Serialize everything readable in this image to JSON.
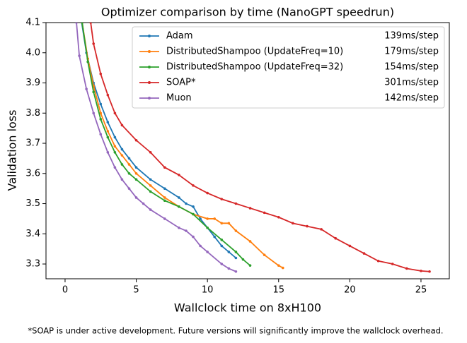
{
  "chart_data": {
    "type": "line",
    "title": "Optimizer comparison by time (NanoGPT speedrun)",
    "xlabel": "Wallclock time on 8xH100",
    "ylabel": "Validation loss",
    "footnote": "*SOAP is under active development. Future versions will significantly improve the wallclock overhead.",
    "xlim": [
      -1.34,
      26.99
    ],
    "xticks": [
      0,
      5,
      10,
      15,
      20,
      25
    ],
    "ylim": [
      3.251,
      4.1
    ],
    "yticks": [
      3.3,
      3.4,
      3.5,
      3.6,
      3.7,
      3.8,
      3.9,
      {
        "value": 4,
        "label": "4.0"
      },
      4.1
    ],
    "legend": "upper right",
    "series": [
      {
        "name": "Adam",
        "note": "139ms/step",
        "color": "#1f77b4",
        "x": [
          1.1,
          1.5,
          2,
          2.5,
          3,
          3.5,
          4,
          4.5,
          5,
          6,
          7,
          8,
          8.5,
          9,
          9.5,
          10,
          10.5,
          11,
          11.5,
          12
        ],
        "values": [
          4.12,
          4.0,
          3.9,
          3.83,
          3.77,
          3.72,
          3.68,
          3.65,
          3.62,
          3.58,
          3.55,
          3.52,
          3.5,
          3.49,
          3.45,
          3.42,
          3.39,
          3.36,
          3.34,
          3.32
        ]
      },
      {
        "name": "DistributedShampoo (UpdateFreq=10)",
        "note": "179ms/step",
        "color": "#ff7f0e",
        "x": [
          1.2,
          1.6,
          2,
          2.5,
          3,
          3.5,
          4,
          4.5,
          5,
          6,
          7,
          8,
          9,
          10,
          10.5,
          11,
          11.5,
          12,
          13,
          14,
          15,
          15.3
        ],
        "values": [
          4.1,
          3.98,
          3.89,
          3.8,
          3.74,
          3.69,
          3.66,
          3.63,
          3.6,
          3.56,
          3.52,
          3.49,
          3.465,
          3.45,
          3.45,
          3.435,
          3.435,
          3.41,
          3.375,
          3.33,
          3.295,
          3.287
        ]
      },
      {
        "name": "DistributedShampoo (UpdateFreq=32)",
        "note": "154ms/step",
        "color": "#2ca02c",
        "x": [
          1.2,
          1.6,
          2,
          2.5,
          3,
          3.5,
          4,
          4.5,
          5,
          6,
          7,
          8,
          9,
          10,
          11,
          12,
          12.5,
          13
        ],
        "values": [
          4.1,
          3.97,
          3.87,
          3.78,
          3.72,
          3.67,
          3.63,
          3.6,
          3.58,
          3.54,
          3.51,
          3.49,
          3.465,
          3.42,
          3.38,
          3.34,
          3.315,
          3.295
        ]
      },
      {
        "name": "SOAP*",
        "note": "301ms/step",
        "color": "#d62728",
        "x": [
          1.8,
          2,
          2.5,
          3,
          3.5,
          4,
          5,
          6,
          7,
          8,
          9,
          10,
          11,
          12,
          13,
          14,
          15,
          16,
          17,
          18,
          19,
          20,
          21,
          22,
          23,
          24,
          25,
          25.6
        ],
        "values": [
          4.1,
          4.03,
          3.93,
          3.86,
          3.8,
          3.76,
          3.71,
          3.67,
          3.62,
          3.595,
          3.56,
          3.535,
          3.515,
          3.5,
          3.485,
          3.47,
          3.455,
          3.435,
          3.425,
          3.415,
          3.385,
          3.36,
          3.335,
          3.31,
          3.3,
          3.285,
          3.277,
          3.275
        ]
      },
      {
        "name": "Muon",
        "note": "142ms/step",
        "color": "#9467bd",
        "x": [
          0.8,
          1,
          1.5,
          2,
          2.5,
          3,
          3.5,
          4,
          4.5,
          5,
          5.5,
          6,
          7,
          8,
          8.5,
          9,
          9.5,
          10,
          11,
          11.5,
          12
        ],
        "values": [
          4.1,
          3.99,
          3.88,
          3.8,
          3.73,
          3.67,
          3.62,
          3.58,
          3.55,
          3.52,
          3.5,
          3.48,
          3.45,
          3.42,
          3.41,
          3.39,
          3.36,
          3.34,
          3.3,
          3.285,
          3.275
        ]
      }
    ]
  }
}
